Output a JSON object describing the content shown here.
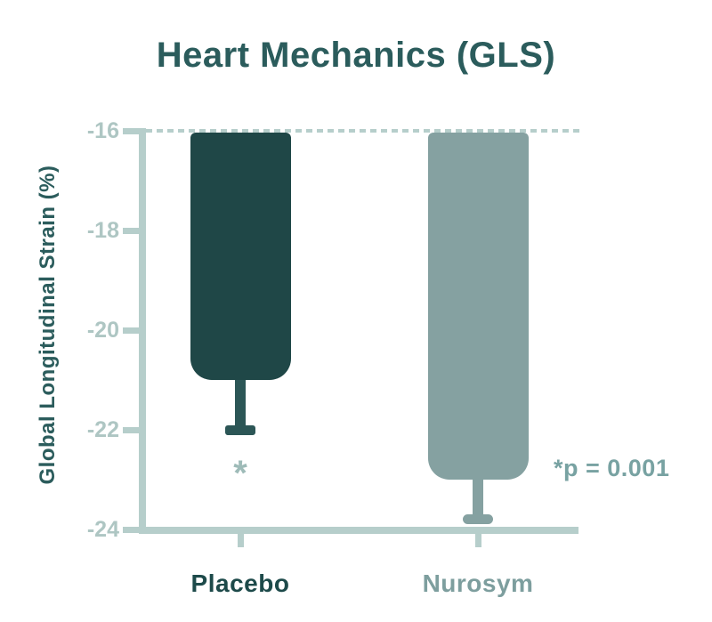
{
  "colors": {
    "background": "#ffffff",
    "title_text": "#2b5c5c",
    "axis_label_text": "#2b5c5c",
    "axis_line": "#b6cecb",
    "dashed_baseline": "#b6cecb",
    "tick_label_text": "#aec6c3",
    "annotation_text": "#78a2a2",
    "significance_marker": "#9ebbb8"
  },
  "chart_data": {
    "type": "bar",
    "orientation": "vertical",
    "title": "Heart Mechanics (GLS)",
    "xlabel": "",
    "ylabel": "Global Longitudinal Strain (%)",
    "categories": [
      "Placebo",
      "Nurosym"
    ],
    "values": [
      -21.0,
      -23.0
    ],
    "errors": [
      1.0,
      0.8
    ],
    "error_direction": "down",
    "bar_colors": [
      "#1f4747",
      "#85a1a1"
    ],
    "error_bar_colors": [
      "#2c5656",
      "#85a1a1"
    ],
    "category_label_colors": [
      "#1d4a4a",
      "#7d9e9e"
    ],
    "ylim": [
      -16,
      -24
    ],
    "yticks": [
      -16,
      -18,
      -20,
      -22,
      -24
    ],
    "ytick_labels": [
      "-16",
      "-18",
      "-20",
      "-22",
      "-24"
    ],
    "baseline": {
      "value": -16,
      "style": "dashed"
    },
    "grid": false,
    "legend": false,
    "annotation": "*p = 0.001",
    "significance": {
      "text": "*",
      "category": "Placebo",
      "y_value": -22.8
    }
  }
}
